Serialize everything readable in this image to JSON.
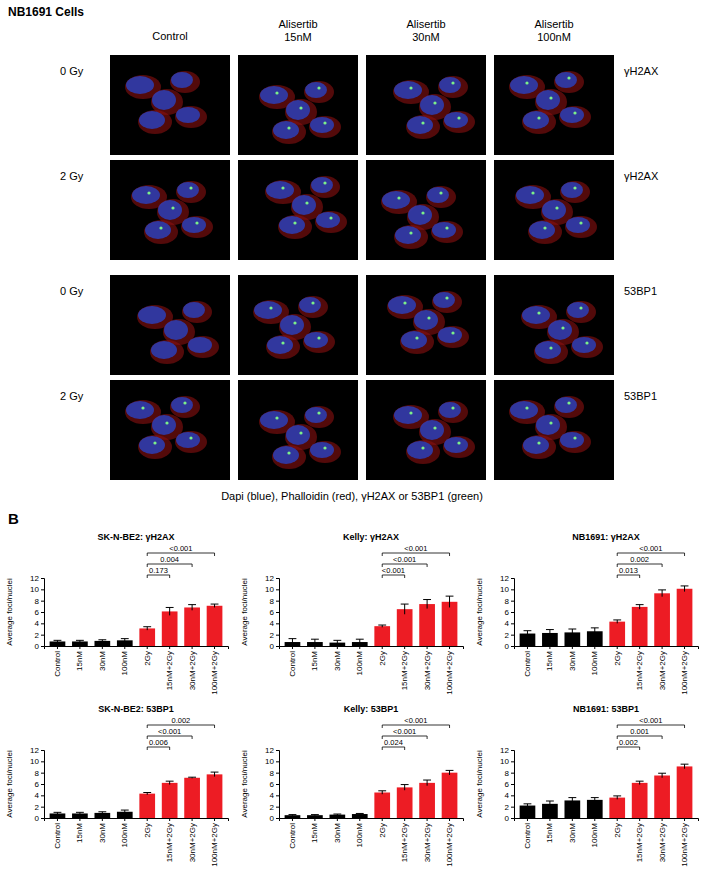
{
  "image_panel": {
    "title": "NB1691 Cells",
    "columns": [
      "Control",
      "Alisertib 15nM",
      "Alisertib 30nM",
      "Alisertib 100nM"
    ],
    "rows": [
      {
        "dose": "0 Gy",
        "stain": "γH2AX"
      },
      {
        "dose": "2 Gy",
        "stain": "γH2AX"
      },
      {
        "dose": "0 Gy",
        "stain": "53BP1"
      },
      {
        "dose": "2 Gy",
        "stain": "53BP1"
      }
    ],
    "caption": "Dapi (blue), Phalloidin (red), γH2AX or 53BP1 (green)"
  },
  "panel_label": "B",
  "chart_data": [
    {
      "type": "bar",
      "title": "SK-N-BE2: γH2AX",
      "ylabel": "Average foci/nuclei",
      "categories": [
        "Control",
        "15nM",
        "30nM",
        "100nM",
        "2Gy",
        "15nM+2Gy",
        "30nM+2Gy",
        "100nM+2Gy"
      ],
      "values": [
        0.8,
        0.8,
        0.9,
        1.0,
        3.1,
        6.1,
        6.8,
        7.1
      ],
      "errors": [
        0.2,
        0.2,
        0.2,
        0.3,
        0.3,
        0.7,
        0.5,
        0.3
      ],
      "colors": [
        "#000000",
        "#000000",
        "#000000",
        "#000000",
        "#ed1c24",
        "#ed1c24",
        "#ed1c24",
        "#ed1c24"
      ],
      "ylim": [
        0,
        12
      ],
      "yticks": [
        0,
        2,
        4,
        6,
        8,
        10,
        12
      ],
      "comparisons": [
        {
          "from": "2Gy",
          "to": "15nM+2Gy",
          "label": "0.173"
        },
        {
          "from": "2Gy",
          "to": "30nM+2Gy",
          "label": "0.004"
        },
        {
          "from": "2Gy",
          "to": "100nM+2Gy",
          "label": "<0.001"
        }
      ]
    },
    {
      "type": "bar",
      "title": "Kelly: γH2AX",
      "ylabel": "Average foci/nuclei",
      "categories": [
        "Control",
        "15nM",
        "30nM",
        "100nM",
        "2Gy",
        "15nM+2Gy",
        "30nM+2Gy",
        "100nM+2Gy"
      ],
      "values": [
        0.7,
        0.7,
        0.6,
        0.7,
        3.5,
        6.5,
        7.4,
        7.8
      ],
      "errors": [
        0.6,
        0.5,
        0.4,
        0.5,
        0.2,
        0.9,
        0.8,
        1.0
      ],
      "colors": [
        "#000000",
        "#000000",
        "#000000",
        "#000000",
        "#ed1c24",
        "#ed1c24",
        "#ed1c24",
        "#ed1c24"
      ],
      "ylim": [
        0,
        12
      ],
      "yticks": [
        0,
        2,
        4,
        6,
        8,
        10,
        12
      ],
      "comparisons": [
        {
          "from": "2Gy",
          "to": "15nM+2Gy",
          "label": "<0.001"
        },
        {
          "from": "2Gy",
          "to": "30nM+2Gy",
          "label": "<0.001"
        },
        {
          "from": "2Gy",
          "to": "100nM+2Gy",
          "label": "<0.001"
        }
      ]
    },
    {
      "type": "bar",
      "title": "NB1691: γH2AX",
      "ylabel": "Average foci/nuclei",
      "categories": [
        "Control",
        "15nM",
        "30nM",
        "100nM",
        "2Gy",
        "15nM+2Gy",
        "30nM+2Gy",
        "100nM+2Gy"
      ],
      "values": [
        2.2,
        2.3,
        2.4,
        2.6,
        4.3,
        6.9,
        9.3,
        10.1
      ],
      "errors": [
        0.5,
        0.6,
        0.6,
        0.6,
        0.3,
        0.4,
        0.6,
        0.5
      ],
      "colors": [
        "#000000",
        "#000000",
        "#000000",
        "#000000",
        "#ed1c24",
        "#ed1c24",
        "#ed1c24",
        "#ed1c24"
      ],
      "ylim": [
        0,
        12
      ],
      "yticks": [
        0,
        2,
        4,
        6,
        8,
        10,
        12
      ],
      "comparisons": [
        {
          "from": "2Gy",
          "to": "15nM+2Gy",
          "label": "0.013"
        },
        {
          "from": "2Gy",
          "to": "30nM+2Gy",
          "label": "0.002"
        },
        {
          "from": "2Gy",
          "to": "100nM+2Gy",
          "label": "<0.001"
        }
      ]
    },
    {
      "type": "bar",
      "title": "SK-N-BE2: 53BP1",
      "ylabel": "Average foci/nuclei",
      "categories": [
        "Control",
        "15nM",
        "30nM",
        "100nM",
        "2Gy",
        "15nM+2Gy",
        "30nM+2Gy",
        "100nM+2Gy"
      ],
      "values": [
        0.8,
        0.8,
        0.9,
        1.1,
        4.3,
        6.2,
        7.1,
        7.7
      ],
      "errors": [
        0.2,
        0.2,
        0.2,
        0.3,
        0.2,
        0.3,
        0.1,
        0.4
      ],
      "colors": [
        "#000000",
        "#000000",
        "#000000",
        "#000000",
        "#ed1c24",
        "#ed1c24",
        "#ed1c24",
        "#ed1c24"
      ],
      "ylim": [
        0,
        12
      ],
      "yticks": [
        0,
        2,
        4,
        6,
        8,
        10,
        12
      ],
      "comparisons": [
        {
          "from": "2Gy",
          "to": "15nM+2Gy",
          "label": "0.006"
        },
        {
          "from": "2Gy",
          "to": "30nM+2Gy",
          "label": "<0.001"
        },
        {
          "from": "2Gy",
          "to": "100nM+2Gy",
          "label": "0.002"
        }
      ]
    },
    {
      "type": "bar",
      "title": "Kelly: 53BP1",
      "ylabel": "Average foci/nuclei",
      "categories": [
        "Control",
        "15nM",
        "30nM",
        "100nM",
        "2Gy",
        "15nM+2Gy",
        "30nM+2Gy",
        "100nM+2Gy"
      ],
      "values": [
        0.5,
        0.5,
        0.6,
        0.7,
        4.5,
        5.4,
        6.2,
        8.0
      ],
      "errors": [
        0.1,
        0.1,
        0.1,
        0.1,
        0.3,
        0.5,
        0.5,
        0.4
      ],
      "colors": [
        "#000000",
        "#000000",
        "#000000",
        "#000000",
        "#ed1c24",
        "#ed1c24",
        "#ed1c24",
        "#ed1c24"
      ],
      "ylim": [
        0,
        12
      ],
      "yticks": [
        0,
        2,
        4,
        6,
        8,
        10,
        12
      ],
      "comparisons": [
        {
          "from": "2Gy",
          "to": "15nM+2Gy",
          "label": "0.024"
        },
        {
          "from": "2Gy",
          "to": "30nM+2Gy",
          "label": "<0.001"
        },
        {
          "from": "2Gy",
          "to": "100nM+2Gy",
          "label": "<0.001"
        }
      ]
    },
    {
      "type": "bar",
      "title": "NB1691: 53BP1",
      "ylabel": "Average foci/nuclei",
      "categories": [
        "Control",
        "15nM",
        "30nM",
        "100nM",
        "2Gy",
        "15nM+2Gy",
        "30nM+2Gy",
        "100nM+2Gy"
      ],
      "values": [
        2.2,
        2.5,
        3.1,
        3.2,
        3.6,
        6.2,
        7.5,
        9.1
      ],
      "errors": [
        0.3,
        0.5,
        0.5,
        0.4,
        0.3,
        0.3,
        0.4,
        0.4
      ],
      "colors": [
        "#000000",
        "#000000",
        "#000000",
        "#000000",
        "#ed1c24",
        "#ed1c24",
        "#ed1c24",
        "#ed1c24"
      ],
      "ylim": [
        0,
        12
      ],
      "yticks": [
        0,
        2,
        4,
        6,
        8,
        10,
        12
      ],
      "comparisons": [
        {
          "from": "2Gy",
          "to": "15nM+2Gy",
          "label": "0.002"
        },
        {
          "from": "2Gy",
          "to": "30nM+2Gy",
          "label": "0.001"
        },
        {
          "from": "2Gy",
          "to": "100nM+2Gy",
          "label": "<0.001"
        }
      ]
    }
  ]
}
